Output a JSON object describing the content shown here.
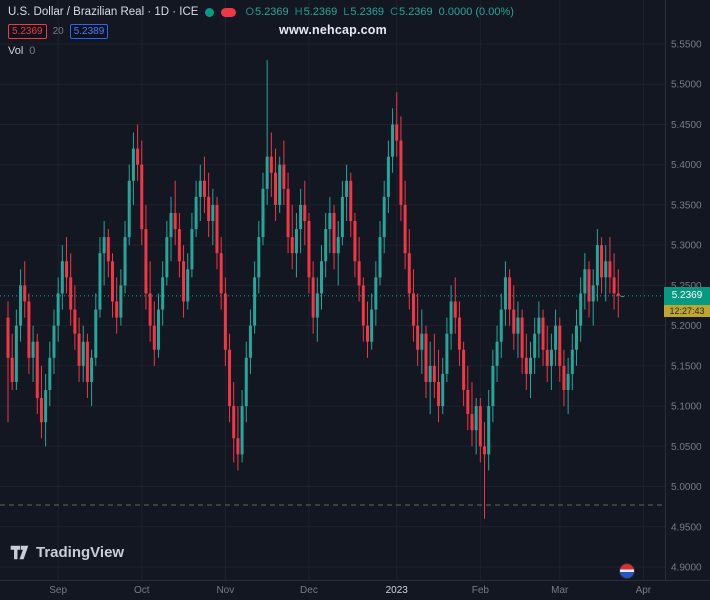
{
  "header": {
    "title": "U.S. Dollar / Brazilian Real · 1D · ICE",
    "ohlc": {
      "o_label": "O",
      "o_value": "5.2369",
      "h_label": "H",
      "h_value": "5.2369",
      "l_label": "L",
      "l_value": "5.2369",
      "c_label": "C",
      "c_value": "5.2369",
      "change": "0.0000 (0.00%)"
    },
    "indicator": {
      "value_red": "5.2369",
      "period": "20",
      "value_blue": "5.2389"
    },
    "volume_label": "Vol",
    "volume_value": "0"
  },
  "watermark": "www.nehcap.com",
  "price_label": {
    "value": "5.2369",
    "countdown": "12:27:43"
  },
  "footer": {
    "logo_text": "TradingView"
  },
  "colors": {
    "background": "#131722",
    "up": "#26a69a",
    "down": "#f23645",
    "grid": "#1e222d",
    "axis_text": "#787b86",
    "price_label_bg": "#089981",
    "countdown_bg": "#bfa72e",
    "accent_blue": "#2962ff",
    "accent_red": "#f23645"
  },
  "chart_data": {
    "type": "candlestick",
    "title": "U.S. Dollar / Brazilian Real",
    "interval": "1D",
    "exchange": "ICE",
    "price_min": 4.9,
    "price_max": 5.55,
    "price_ticks": [
      5.55,
      5.5,
      5.45,
      5.4,
      5.35,
      5.3,
      5.25,
      5.2,
      5.15,
      5.1,
      5.05,
      5.0,
      4.95,
      4.9
    ],
    "time_ticks": [
      {
        "label": "Sep",
        "index": 12
      },
      {
        "label": "Oct",
        "index": 32
      },
      {
        "label": "Nov",
        "index": 52
      },
      {
        "label": "Dec",
        "index": 72
      },
      {
        "label": "2023",
        "index": 93,
        "major": true
      },
      {
        "label": "Feb",
        "index": 113
      },
      {
        "label": "Mar",
        "index": 132
      },
      {
        "label": "Apr",
        "index": 152
      }
    ],
    "last_price": 5.2369,
    "dashed_line_price": 4.977,
    "up_color": "#26a69a",
    "down_color": "#f23645",
    "candles": [
      [
        5.21,
        5.23,
        5.08,
        5.16
      ],
      [
        5.16,
        5.19,
        5.12,
        5.13
      ],
      [
        5.13,
        5.22,
        5.12,
        5.2
      ],
      [
        5.2,
        5.27,
        5.18,
        5.25
      ],
      [
        5.25,
        5.28,
        5.21,
        5.23
      ],
      [
        5.23,
        5.24,
        5.14,
        5.16
      ],
      [
        5.16,
        5.2,
        5.13,
        5.18
      ],
      [
        5.18,
        5.19,
        5.09,
        5.11
      ],
      [
        5.11,
        5.15,
        5.06,
        5.08
      ],
      [
        5.08,
        5.14,
        5.05,
        5.12
      ],
      [
        5.12,
        5.18,
        5.1,
        5.16
      ],
      [
        5.16,
        5.22,
        5.14,
        5.2
      ],
      [
        5.2,
        5.26,
        5.18,
        5.24
      ],
      [
        5.24,
        5.3,
        5.22,
        5.28
      ],
      [
        5.28,
        5.31,
        5.24,
        5.26
      ],
      [
        5.26,
        5.29,
        5.2,
        5.22
      ],
      [
        5.22,
        5.25,
        5.17,
        5.19
      ],
      [
        5.19,
        5.21,
        5.13,
        5.15
      ],
      [
        5.15,
        5.2,
        5.13,
        5.18
      ],
      [
        5.18,
        5.19,
        5.11,
        5.13
      ],
      [
        5.13,
        5.17,
        5.1,
        5.16
      ],
      [
        5.16,
        5.24,
        5.15,
        5.22
      ],
      [
        5.22,
        5.31,
        5.21,
        5.29
      ],
      [
        5.29,
        5.33,
        5.25,
        5.31
      ],
      [
        5.31,
        5.32,
        5.26,
        5.28
      ],
      [
        5.28,
        5.29,
        5.21,
        5.23
      ],
      [
        5.23,
        5.26,
        5.19,
        5.21
      ],
      [
        5.21,
        5.27,
        5.2,
        5.25
      ],
      [
        5.25,
        5.33,
        5.24,
        5.31
      ],
      [
        5.31,
        5.4,
        5.3,
        5.38
      ],
      [
        5.38,
        5.44,
        5.35,
        5.42
      ],
      [
        5.42,
        5.45,
        5.38,
        5.4
      ],
      [
        5.4,
        5.43,
        5.3,
        5.32
      ],
      [
        5.32,
        5.35,
        5.22,
        5.24
      ],
      [
        5.24,
        5.28,
        5.18,
        5.2
      ],
      [
        5.2,
        5.23,
        5.15,
        5.17
      ],
      [
        5.17,
        5.24,
        5.16,
        5.22
      ],
      [
        5.22,
        5.28,
        5.2,
        5.26
      ],
      [
        5.26,
        5.33,
        5.25,
        5.31
      ],
      [
        5.31,
        5.36,
        5.28,
        5.34
      ],
      [
        5.34,
        5.38,
        5.3,
        5.32
      ],
      [
        5.32,
        5.34,
        5.26,
        5.28
      ],
      [
        5.28,
        5.3,
        5.21,
        5.23
      ],
      [
        5.23,
        5.29,
        5.22,
        5.27
      ],
      [
        5.27,
        5.34,
        5.26,
        5.32
      ],
      [
        5.32,
        5.38,
        5.31,
        5.36
      ],
      [
        5.36,
        5.4,
        5.33,
        5.38
      ],
      [
        5.38,
        5.41,
        5.34,
        5.36
      ],
      [
        5.36,
        5.39,
        5.31,
        5.33
      ],
      [
        5.33,
        5.37,
        5.3,
        5.35
      ],
      [
        5.35,
        5.36,
        5.27,
        5.29
      ],
      [
        5.29,
        5.31,
        5.22,
        5.24
      ],
      [
        5.24,
        5.26,
        5.15,
        5.17
      ],
      [
        5.17,
        5.19,
        5.08,
        5.1
      ],
      [
        5.1,
        5.13,
        5.03,
        5.06
      ],
      [
        5.06,
        5.1,
        5.02,
        5.04
      ],
      [
        5.04,
        5.12,
        5.03,
        5.1
      ],
      [
        5.1,
        5.18,
        5.08,
        5.16
      ],
      [
        5.16,
        5.22,
        5.14,
        5.2
      ],
      [
        5.2,
        5.28,
        5.19,
        5.26
      ],
      [
        5.26,
        5.33,
        5.24,
        5.31
      ],
      [
        5.31,
        5.39,
        5.3,
        5.37
      ],
      [
        5.37,
        5.53,
        5.35,
        5.41
      ],
      [
        5.41,
        5.44,
        5.36,
        5.39
      ],
      [
        5.39,
        5.42,
        5.33,
        5.35
      ],
      [
        5.35,
        5.41,
        5.34,
        5.4
      ],
      [
        5.4,
        5.43,
        5.35,
        5.37
      ],
      [
        5.37,
        5.39,
        5.29,
        5.31
      ],
      [
        5.31,
        5.35,
        5.27,
        5.29
      ],
      [
        5.29,
        5.34,
        5.26,
        5.32
      ],
      [
        5.32,
        5.37,
        5.29,
        5.35
      ],
      [
        5.35,
        5.38,
        5.3,
        5.33
      ],
      [
        5.33,
        5.34,
        5.24,
        5.26
      ],
      [
        5.26,
        5.28,
        5.19,
        5.21
      ],
      [
        5.21,
        5.26,
        5.18,
        5.24
      ],
      [
        5.24,
        5.3,
        5.22,
        5.28
      ],
      [
        5.28,
        5.34,
        5.26,
        5.32
      ],
      [
        5.32,
        5.36,
        5.29,
        5.34
      ],
      [
        5.34,
        5.35,
        5.27,
        5.29
      ],
      [
        5.29,
        5.33,
        5.25,
        5.31
      ],
      [
        5.31,
        5.38,
        5.3,
        5.36
      ],
      [
        5.36,
        5.4,
        5.33,
        5.38
      ],
      [
        5.38,
        5.39,
        5.31,
        5.33
      ],
      [
        5.33,
        5.34,
        5.26,
        5.28
      ],
      [
        5.28,
        5.31,
        5.23,
        5.25
      ],
      [
        5.25,
        5.26,
        5.18,
        5.2
      ],
      [
        5.2,
        5.23,
        5.16,
        5.18
      ],
      [
        5.18,
        5.24,
        5.17,
        5.22
      ],
      [
        5.22,
        5.28,
        5.2,
        5.26
      ],
      [
        5.26,
        5.33,
        5.25,
        5.31
      ],
      [
        5.31,
        5.38,
        5.29,
        5.36
      ],
      [
        5.36,
        5.43,
        5.34,
        5.41
      ],
      [
        5.41,
        5.47,
        5.39,
        5.45
      ],
      [
        5.45,
        5.49,
        5.41,
        5.43
      ],
      [
        5.43,
        5.46,
        5.33,
        5.35
      ],
      [
        5.35,
        5.38,
        5.27,
        5.29
      ],
      [
        5.29,
        5.32,
        5.22,
        5.24
      ],
      [
        5.24,
        5.27,
        5.18,
        5.2
      ],
      [
        5.2,
        5.24,
        5.15,
        5.17
      ],
      [
        5.17,
        5.22,
        5.14,
        5.19
      ],
      [
        5.19,
        5.2,
        5.11,
        5.13
      ],
      [
        5.13,
        5.18,
        5.09,
        5.15
      ],
      [
        5.15,
        5.19,
        5.11,
        5.13
      ],
      [
        5.13,
        5.17,
        5.08,
        5.1
      ],
      [
        5.1,
        5.16,
        5.09,
        5.14
      ],
      [
        5.14,
        5.21,
        5.13,
        5.19
      ],
      [
        5.19,
        5.25,
        5.17,
        5.23
      ],
      [
        5.23,
        5.26,
        5.19,
        5.21
      ],
      [
        5.21,
        5.23,
        5.15,
        5.17
      ],
      [
        5.17,
        5.18,
        5.1,
        5.12
      ],
      [
        5.12,
        5.15,
        5.07,
        5.09
      ],
      [
        5.09,
        5.13,
        5.05,
        5.07
      ],
      [
        5.07,
        5.11,
        5.04,
        5.1
      ],
      [
        5.1,
        5.11,
        5.03,
        5.05
      ],
      [
        5.05,
        5.08,
        4.96,
        5.04
      ],
      [
        5.04,
        5.12,
        5.02,
        5.1
      ],
      [
        5.1,
        5.17,
        5.08,
        5.15
      ],
      [
        5.15,
        5.2,
        5.13,
        5.18
      ],
      [
        5.18,
        5.24,
        5.16,
        5.22
      ],
      [
        5.22,
        5.28,
        5.2,
        5.26
      ],
      [
        5.26,
        5.27,
        5.2,
        5.22
      ],
      [
        5.22,
        5.25,
        5.17,
        5.19
      ],
      [
        5.19,
        5.23,
        5.16,
        5.21
      ],
      [
        5.21,
        5.22,
        5.14,
        5.16
      ],
      [
        5.16,
        5.19,
        5.12,
        5.14
      ],
      [
        5.14,
        5.18,
        5.11,
        5.16
      ],
      [
        5.16,
        5.21,
        5.14,
        5.19
      ],
      [
        5.19,
        5.23,
        5.16,
        5.21
      ],
      [
        5.21,
        5.22,
        5.15,
        5.17
      ],
      [
        5.17,
        5.2,
        5.13,
        5.15
      ],
      [
        5.15,
        5.19,
        5.12,
        5.17
      ],
      [
        5.17,
        5.22,
        5.15,
        5.2
      ],
      [
        5.2,
        5.21,
        5.13,
        5.15
      ],
      [
        5.15,
        5.17,
        5.1,
        5.12
      ],
      [
        5.12,
        5.16,
        5.09,
        5.14
      ],
      [
        5.14,
        5.19,
        5.12,
        5.17
      ],
      [
        5.17,
        5.22,
        5.15,
        5.2
      ],
      [
        5.2,
        5.26,
        5.18,
        5.24
      ],
      [
        5.24,
        5.29,
        5.22,
        5.27
      ],
      [
        5.27,
        5.28,
        5.21,
        5.23
      ],
      [
        5.23,
        5.27,
        5.2,
        5.25
      ],
      [
        5.25,
        5.32,
        5.23,
        5.3
      ],
      [
        5.3,
        5.31,
        5.24,
        5.26
      ],
      [
        5.26,
        5.3,
        5.23,
        5.28
      ],
      [
        5.28,
        5.31,
        5.24,
        5.26
      ],
      [
        5.26,
        5.29,
        5.22,
        5.24
      ],
      [
        5.24,
        5.27,
        5.21,
        5.2369
      ],
      [
        5.2369,
        5.2369,
        5.2369,
        5.2369
      ]
    ]
  }
}
